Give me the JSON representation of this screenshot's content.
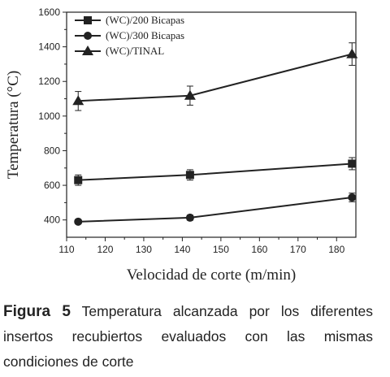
{
  "chart_data": {
    "type": "line",
    "xlabel": "Velocidad de corte (m/min)",
    "ylabel": "Temperatura (°C)",
    "xlim": [
      110,
      185
    ],
    "ylim": [
      300,
      1600
    ],
    "xticks": [
      110,
      120,
      130,
      140,
      150,
      160,
      170,
      180
    ],
    "yticks": [
      400,
      600,
      800,
      1000,
      1200,
      1400,
      1600
    ],
    "grid": false,
    "legend_position": "top-left",
    "series": [
      {
        "name": "(WC)/200 Bicapas",
        "marker": "square",
        "x": [
          113,
          142,
          184
        ],
        "values": [
          630,
          660,
          725
        ],
        "error": [
          30,
          30,
          35
        ]
      },
      {
        "name": "(WC)/300 Bicapas",
        "marker": "circle",
        "x": [
          113,
          142,
          184
        ],
        "values": [
          390,
          413,
          530
        ],
        "error": [
          12,
          15,
          25
        ]
      },
      {
        "name": "(WC)/TINAL",
        "marker": "triangle",
        "x": [
          113,
          142,
          184
        ],
        "values": [
          1087,
          1118,
          1358
        ],
        "error": [
          55,
          55,
          65
        ]
      }
    ]
  },
  "caption": {
    "label": "Figura 5",
    "text": "Temperatura alcanzada por los diferentes insertos recubiertos evaluados con las mismas condiciones de corte"
  }
}
